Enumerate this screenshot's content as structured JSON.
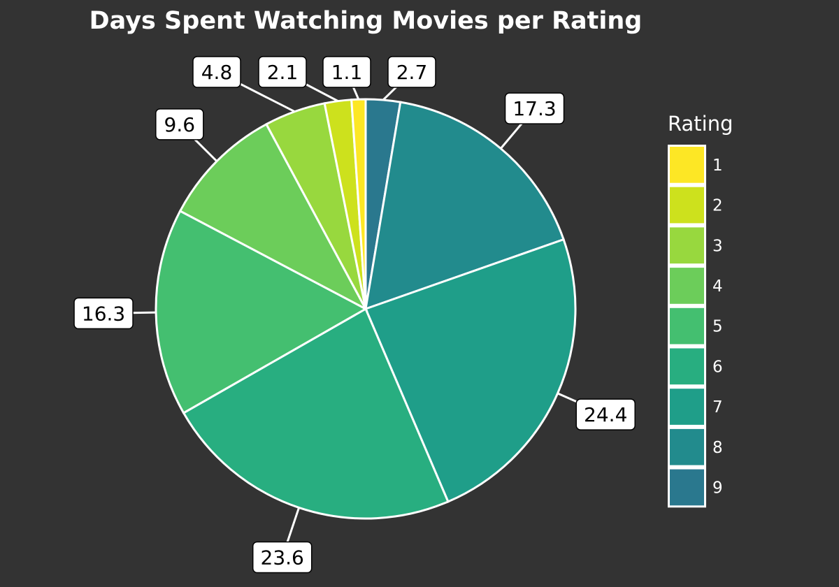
{
  "chart_data": {
    "type": "pie",
    "title": "Days Spent Watching Movies per Rating",
    "categories": [
      "1",
      "2",
      "3",
      "4",
      "5",
      "6",
      "7",
      "8",
      "9"
    ],
    "values": [
      1.1,
      2.1,
      4.8,
      9.6,
      16.3,
      23.6,
      24.4,
      17.3,
      2.7
    ],
    "colors": [
      "#fde725",
      "#cde11d",
      "#98d83e",
      "#6ccd5a",
      "#44bf70",
      "#28ae80",
      "#1f9e89",
      "#228b8d",
      "#2a788e"
    ],
    "slice_order": [
      "9",
      "8",
      "7",
      "6",
      "5",
      "4",
      "3",
      "2",
      "1"
    ],
    "direction": "clockwise from top",
    "data_labels": true,
    "legend": {
      "title": "Rating",
      "position": "right"
    },
    "background": "#333333",
    "slice_border_color": "#ffffff"
  }
}
